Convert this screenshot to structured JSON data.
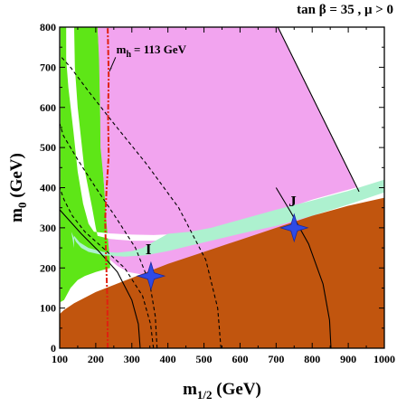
{
  "chart_data": {
    "type": "area",
    "title": "tan β = 35 ,  μ > 0",
    "xlabel": {
      "main": "m",
      "sub": "1/2",
      "unit": " (GeV)"
    },
    "ylabel": {
      "main": "m",
      "sub": "0",
      "unit": " (GeV)"
    },
    "xlim": [
      100,
      1000
    ],
    "ylim": [
      0,
      800
    ],
    "xticks": [
      "100",
      "200",
      "300",
      "400",
      "500",
      "600",
      "700",
      "800",
      "900",
      "1000"
    ],
    "yticks": [
      "0",
      "100",
      "200",
      "300",
      "400",
      "500",
      "600",
      "700",
      "800"
    ],
    "grid": false,
    "regions": [
      {
        "kind": "green",
        "color": "#5ee617",
        "polygon": [
          [
            102,
            800
          ],
          [
            205,
            800
          ],
          [
            210,
            720
          ],
          [
            212,
            600
          ],
          [
            215,
            500
          ],
          [
            225,
            380
          ],
          [
            233,
            300
          ],
          [
            238,
            250
          ],
          [
            240,
            200
          ],
          [
            200,
            190
          ],
          [
            170,
            180
          ],
          [
            150,
            170
          ],
          [
            130,
            150
          ],
          [
            112,
            120
          ],
          [
            102,
            115
          ]
        ]
      },
      {
        "kind": "pink",
        "color": "#f2a4ef",
        "polygon": [
          [
            205,
            800
          ],
          [
            705,
            800
          ],
          [
            930,
            390
          ],
          [
            860,
            360
          ],
          [
            800,
            325
          ],
          [
            700,
            285
          ],
          [
            600,
            255
          ],
          [
            500,
            225
          ],
          [
            420,
            200
          ],
          [
            350,
            180
          ],
          [
            290,
            190
          ],
          [
            260,
            205
          ],
          [
            240,
            220
          ],
          [
            235,
            260
          ],
          [
            228,
            330
          ],
          [
            222,
            420
          ],
          [
            213,
            500
          ],
          [
            212,
            600
          ],
          [
            209,
            720
          ]
        ]
      },
      {
        "kind": "white-band",
        "color": "#ffffff",
        "polygon": [
          [
            118,
            800
          ],
          [
            140,
            800
          ],
          [
            142,
            700
          ],
          [
            150,
            600
          ],
          [
            168,
            450
          ],
          [
            190,
            350
          ],
          [
            200,
            300
          ],
          [
            205,
            280
          ],
          [
            240,
            272
          ],
          [
            300,
            268
          ],
          [
            360,
            268
          ],
          [
            440,
            272
          ],
          [
            500,
            278
          ],
          [
            600,
            300
          ],
          [
            700,
            325
          ],
          [
            800,
            350
          ],
          [
            900,
            370
          ],
          [
            1000,
            390
          ],
          [
            1000,
            420
          ],
          [
            900,
            395
          ],
          [
            800,
            370
          ],
          [
            700,
            340
          ],
          [
            600,
            315
          ],
          [
            500,
            292
          ],
          [
            440,
            285
          ],
          [
            360,
            282
          ],
          [
            300,
            283
          ],
          [
            240,
            286
          ],
          [
            195,
            290
          ],
          [
            180,
            310
          ],
          [
            165,
            360
          ],
          [
            150,
            440
          ],
          [
            138,
            540
          ],
          [
            124,
            650
          ],
          [
            118,
            720
          ]
        ]
      },
      {
        "kind": "light-green-band",
        "color": "#adf1cf",
        "polygon": [
          [
            132,
            290
          ],
          [
            145,
            265
          ],
          [
            160,
            250
          ],
          [
            180,
            240
          ],
          [
            220,
            232
          ],
          [
            280,
            228
          ],
          [
            340,
            232
          ],
          [
            400,
            242
          ],
          [
            460,
            255
          ],
          [
            520,
            268
          ],
          [
            600,
            285
          ],
          [
            700,
            305
          ],
          [
            800,
            330
          ],
          [
            900,
            358
          ],
          [
            1000,
            388
          ],
          [
            1000,
            420
          ],
          [
            900,
            392
          ],
          [
            800,
            368
          ],
          [
            700,
            345
          ],
          [
            600,
            320
          ],
          [
            520,
            300
          ],
          [
            460,
            290
          ],
          [
            400,
            285
          ],
          [
            360,
            265
          ],
          [
            330,
            250
          ],
          [
            300,
            242
          ],
          [
            260,
            238
          ],
          [
            220,
            240
          ],
          [
            180,
            250
          ],
          [
            155,
            264
          ],
          [
            140,
            280
          ],
          [
            140,
            250
          ]
        ]
      },
      {
        "kind": "brown",
        "color": "#c1550e",
        "polygon": [
          [
            100,
            0
          ],
          [
            1000,
            0
          ],
          [
            1000,
            375
          ],
          [
            900,
            355
          ],
          [
            800,
            330
          ],
          [
            700,
            300
          ],
          [
            600,
            270
          ],
          [
            500,
            240
          ],
          [
            400,
            210
          ],
          [
            300,
            175
          ],
          [
            200,
            140
          ],
          [
            140,
            112
          ],
          [
            112,
            95
          ],
          [
            100,
            85
          ]
        ]
      }
    ],
    "curves": [
      {
        "name": "dashed-1",
        "style": "dashed",
        "points": [
          [
            360,
            0
          ],
          [
            352,
            60
          ],
          [
            330,
            130
          ],
          [
            280,
            200
          ],
          [
            220,
            250
          ],
          [
            170,
            290
          ],
          [
            135,
            330
          ],
          [
            112,
            370
          ],
          [
            100,
            400
          ]
        ]
      },
      {
        "name": "dashed-2",
        "style": "dashed",
        "points": [
          [
            547,
            0
          ],
          [
            538,
            100
          ],
          [
            505,
            220
          ],
          [
            430,
            350
          ],
          [
            340,
            460
          ],
          [
            250,
            560
          ],
          [
            180,
            640
          ],
          [
            130,
            700
          ],
          [
            100,
            730
          ]
        ]
      },
      {
        "name": "dashed-3",
        "style": "dashed",
        "points": [
          [
            370,
            0
          ],
          [
            365,
            80
          ],
          [
            350,
            160
          ],
          [
            310,
            250
          ],
          [
            260,
            320
          ],
          [
            200,
            400
          ],
          [
            150,
            470
          ],
          [
            110,
            530
          ],
          [
            100,
            560
          ]
        ]
      },
      {
        "name": "solid-1",
        "style": "solid",
        "points": [
          [
            323,
            0
          ],
          [
            318,
            60
          ],
          [
            300,
            120
          ],
          [
            260,
            190
          ],
          [
            210,
            240
          ],
          [
            160,
            285
          ],
          [
            125,
            320
          ],
          [
            100,
            345
          ]
        ]
      },
      {
        "name": "solid-2",
        "style": "solid",
        "points": [
          [
            852,
            0
          ],
          [
            848,
            70
          ],
          [
            830,
            160
          ],
          [
            790,
            260
          ],
          [
            740,
            340
          ],
          [
            700,
            400
          ]
        ]
      }
    ],
    "higgs_contour": {
      "label_main": "m",
      "label_sub": "h",
      "label_value": "= 113 GeV",
      "color": "#e02010",
      "points": [
        [
          233,
          0
        ],
        [
          232,
          120
        ],
        [
          228,
          240
        ],
        [
          226,
          320
        ],
        [
          230,
          400
        ],
        [
          236,
          480
        ],
        [
          234,
          580
        ],
        [
          236,
          680
        ],
        [
          233,
          800
        ]
      ]
    },
    "markers": [
      {
        "label": "I",
        "x": 353,
        "y": 180
      },
      {
        "label": "J",
        "x": 750,
        "y": 300
      }
    ],
    "boundary_line": {
      "points": [
        [
          705,
          800
        ],
        [
          930,
          390
        ]
      ]
    }
  }
}
